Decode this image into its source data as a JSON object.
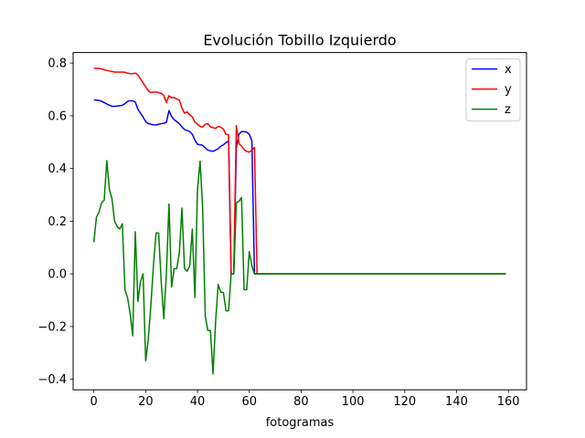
{
  "chart_data": {
    "type": "line",
    "title": "Evolución Tobillo Izquierdo",
    "xlabel": "fotogramas",
    "ylabel": "",
    "xlim": [
      -8,
      167
    ],
    "ylim": [
      -0.44,
      0.84
    ],
    "xticks": [
      0,
      20,
      40,
      60,
      80,
      100,
      120,
      140,
      160
    ],
    "yticks": [
      -0.4,
      -0.2,
      0.0,
      0.2,
      0.4,
      0.6,
      0.8
    ],
    "ytick_labels": [
      "−0.4",
      "−0.2",
      "0.0",
      "0.2",
      "0.4",
      "0.6",
      "0.8"
    ],
    "grid": false,
    "legend": "top-right",
    "tail": {
      "from": 63,
      "to": 159,
      "value": 0.0
    },
    "series": [
      {
        "name": "x",
        "color": "#0000ff",
        "x": [
          0,
          1,
          2,
          3,
          4,
          5,
          6,
          7,
          8,
          9,
          10,
          11,
          12,
          13,
          14,
          15,
          16,
          17,
          18,
          19,
          20,
          21,
          22,
          23,
          24,
          25,
          26,
          27,
          28,
          29,
          30,
          31,
          32,
          33,
          34,
          35,
          36,
          37,
          38,
          39,
          40,
          41,
          42,
          43,
          44,
          45,
          46,
          47,
          48,
          49,
          50,
          51,
          52,
          53,
          54,
          55,
          56,
          57,
          58,
          59,
          60,
          61,
          62
        ],
        "y": [
          0.66,
          0.66,
          0.658,
          0.655,
          0.65,
          0.645,
          0.64,
          0.636,
          0.636,
          0.637,
          0.638,
          0.64,
          0.646,
          0.655,
          0.657,
          0.657,
          0.652,
          0.625,
          0.61,
          0.595,
          0.578,
          0.57,
          0.568,
          0.566,
          0.565,
          0.568,
          0.57,
          0.572,
          0.575,
          0.62,
          0.598,
          0.585,
          0.578,
          0.57,
          0.558,
          0.548,
          0.544,
          0.54,
          0.53,
          0.508,
          0.492,
          0.49,
          0.488,
          0.478,
          0.47,
          0.467,
          0.465,
          0.47,
          0.475,
          0.485,
          0.49,
          0.498,
          0.505,
          0.0,
          0.0,
          0.48,
          0.53,
          0.54,
          0.54,
          0.538,
          0.53,
          0.505,
          0.0
        ]
      },
      {
        "name": "y",
        "color": "#ff0000",
        "x": [
          0,
          1,
          2,
          3,
          4,
          5,
          6,
          7,
          8,
          9,
          10,
          11,
          12,
          13,
          14,
          15,
          16,
          17,
          18,
          19,
          20,
          21,
          22,
          23,
          24,
          25,
          26,
          27,
          28,
          29,
          30,
          31,
          32,
          33,
          34,
          35,
          36,
          37,
          38,
          39,
          40,
          41,
          42,
          43,
          44,
          45,
          46,
          47,
          48,
          49,
          50,
          51,
          52,
          53,
          54,
          55,
          56,
          57,
          58,
          59,
          60,
          61,
          62
        ],
        "y": [
          0.78,
          0.78,
          0.78,
          0.778,
          0.775,
          0.772,
          0.77,
          0.768,
          0.766,
          0.766,
          0.766,
          0.766,
          0.765,
          0.762,
          0.76,
          0.76,
          0.762,
          0.755,
          0.74,
          0.725,
          0.71,
          0.695,
          0.688,
          0.69,
          0.69,
          0.688,
          0.685,
          0.677,
          0.65,
          0.676,
          0.668,
          0.67,
          0.663,
          0.66,
          0.63,
          0.61,
          0.615,
          0.604,
          0.596,
          0.576,
          0.568,
          0.56,
          0.557,
          0.568,
          0.57,
          0.558,
          0.555,
          0.552,
          0.56,
          0.556,
          0.55,
          0.53,
          0.528,
          0.0,
          0.0,
          0.563,
          0.495,
          0.485,
          0.472,
          0.465,
          0.462,
          0.47,
          0.48
        ]
      },
      {
        "name": "z",
        "color": "#008000",
        "x": [
          0,
          1,
          2,
          3,
          4,
          5,
          6,
          7,
          8,
          9,
          10,
          11,
          12,
          13,
          14,
          15,
          16,
          17,
          18,
          19,
          20,
          21,
          22,
          23,
          24,
          25,
          26,
          27,
          28,
          29,
          30,
          31,
          32,
          33,
          34,
          35,
          36,
          37,
          38,
          39,
          40,
          41,
          42,
          43,
          44,
          45,
          46,
          47,
          48,
          49,
          50,
          51,
          52,
          53,
          54,
          55,
          56,
          57,
          58,
          59,
          60,
          61,
          62
        ],
        "y": [
          0.12,
          0.215,
          0.235,
          0.27,
          0.28,
          0.43,
          0.32,
          0.285,
          0.2,
          0.18,
          0.17,
          0.19,
          -0.06,
          -0.09,
          -0.15,
          -0.235,
          0.16,
          -0.105,
          -0.03,
          0.0,
          -0.33,
          -0.25,
          -0.12,
          0.03,
          0.155,
          0.155,
          -0.03,
          -0.17,
          0.0,
          0.265,
          -0.05,
          0.02,
          0.02,
          0.08,
          0.25,
          0.02,
          0.01,
          0.03,
          0.17,
          -0.09,
          0.32,
          0.428,
          0.25,
          -0.16,
          -0.215,
          -0.215,
          -0.38,
          -0.18,
          -0.04,
          -0.07,
          -0.07,
          -0.14,
          -0.14,
          0.0,
          0.0,
          0.27,
          0.275,
          0.29,
          -0.06,
          -0.06,
          0.085,
          0.03,
          0.0
        ]
      }
    ]
  }
}
